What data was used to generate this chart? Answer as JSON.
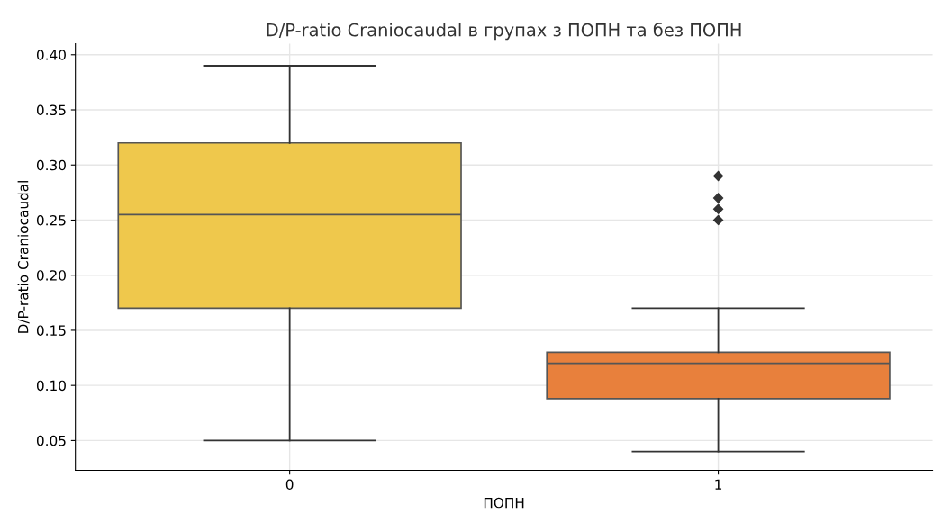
{
  "chart_data": {
    "type": "box",
    "title": "D/P-ratio Craniocaudal в групах з ПОПН та без ПОПН",
    "xlabel": "ПОПН",
    "ylabel": "D/P-ratio Craniocaudal",
    "categories": [
      "0",
      "1"
    ],
    "boxes": [
      {
        "low": 0.05,
        "q1": 0.17,
        "median": 0.255,
        "q3": 0.32,
        "high": 0.39
      },
      {
        "low": 0.04,
        "q1": 0.088,
        "median": 0.12,
        "q3": 0.13,
        "high": 0.17,
        "outliers": [
          0.25,
          0.26,
          0.27,
          0.29
        ]
      }
    ],
    "colors": [
      "#efc84c",
      "#e8803c"
    ],
    "ylim": [
      0.023,
      0.41
    ],
    "yticks": [
      {
        "value": 0.05,
        "label": "0.05"
      },
      {
        "value": 0.1,
        "label": "0.10"
      },
      {
        "value": 0.15,
        "label": "0.15"
      },
      {
        "value": 0.2,
        "label": "0.20"
      },
      {
        "value": 0.25,
        "label": "0.25"
      },
      {
        "value": 0.3,
        "label": "0.30"
      },
      {
        "value": 0.35,
        "label": "0.35"
      },
      {
        "value": 0.4,
        "label": "0.40"
      }
    ],
    "grid": true,
    "marker": "diamond"
  }
}
